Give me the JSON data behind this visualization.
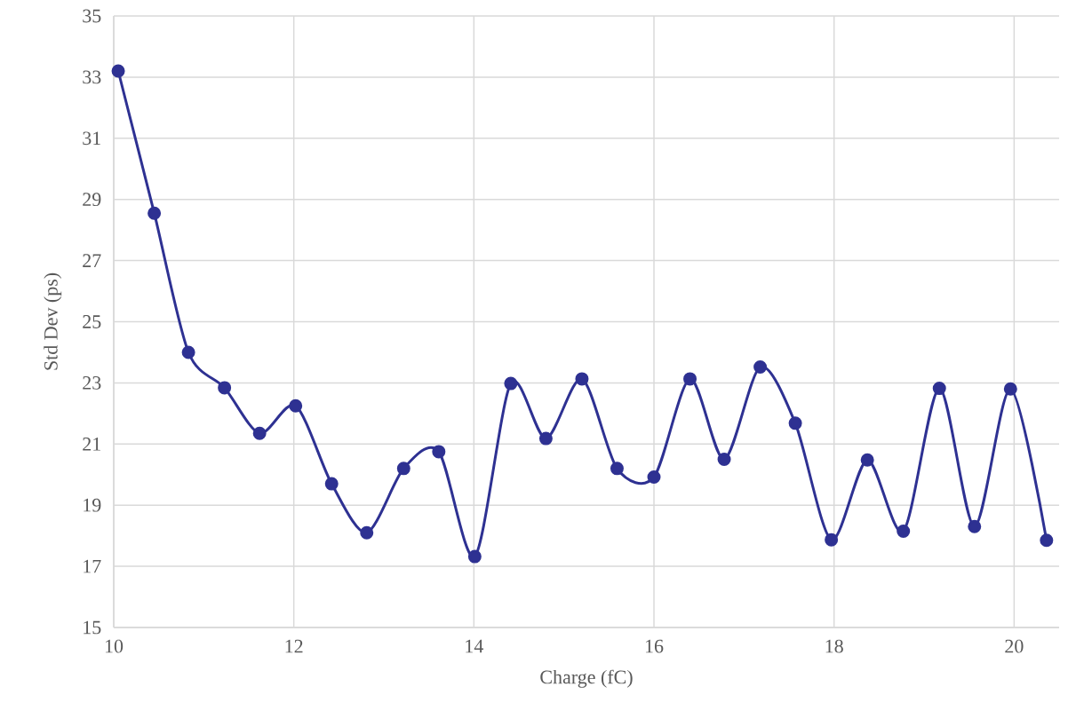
{
  "chart_data": {
    "type": "line",
    "xlabel": "Charge (fC)",
    "ylabel": "Std Dev (ps)",
    "x": [
      10.05,
      10.45,
      10.83,
      11.23,
      11.62,
      12.02,
      12.42,
      12.81,
      13.22,
      13.61,
      14.01,
      14.41,
      14.8,
      15.2,
      15.59,
      16.0,
      16.4,
      16.78,
      17.18,
      17.57,
      17.97,
      18.37,
      18.77,
      19.17,
      19.56,
      19.96,
      20.36
    ],
    "series": [
      {
        "color": "#2e3192",
        "values": [
          33.2,
          28.55,
          24.0,
          22.84,
          21.35,
          22.25,
          19.7,
          18.1,
          20.2,
          20.75,
          17.32,
          22.98,
          21.18,
          23.13,
          20.2,
          19.92,
          23.13,
          20.5,
          23.52,
          21.68,
          17.87,
          20.48,
          18.15,
          22.82,
          18.3,
          22.8,
          17.85
        ]
      }
    ],
    "xlim": [
      10,
      20.5
    ],
    "ylim": [
      15,
      35
    ],
    "xticks": [
      10,
      12,
      14,
      16,
      18,
      20
    ],
    "yticks": [
      15,
      17,
      19,
      21,
      23,
      25,
      27,
      29,
      31,
      33,
      35
    ],
    "grid": true,
    "marker": "circle",
    "line_style": "solid"
  }
}
